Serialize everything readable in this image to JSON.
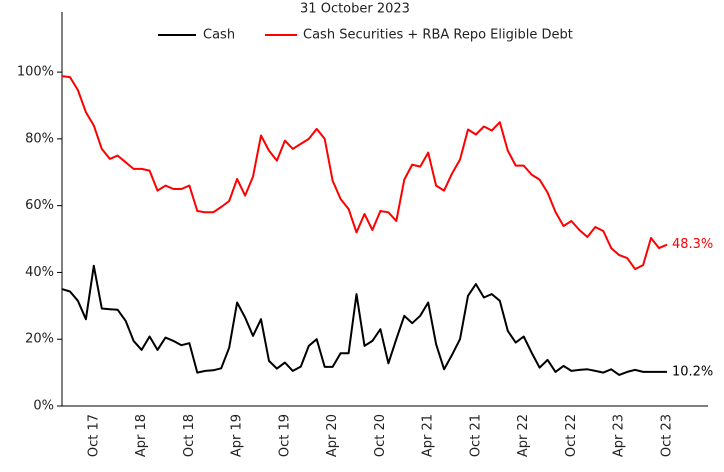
{
  "chart_data": {
    "type": "line",
    "subtitle": "31 October 2023",
    "categories": [
      null,
      null,
      null,
      null,
      "Oct 17",
      null,
      null,
      null,
      null,
      null,
      "Apr 18",
      null,
      null,
      null,
      null,
      null,
      "Oct 18",
      null,
      null,
      null,
      null,
      null,
      "Apr 19",
      null,
      null,
      null,
      null,
      null,
      "Oct 19",
      null,
      null,
      null,
      null,
      null,
      "Apr 20",
      null,
      null,
      null,
      null,
      null,
      "Oct 20",
      null,
      null,
      null,
      null,
      null,
      "Apr 21",
      null,
      null,
      null,
      null,
      null,
      "Oct 21",
      null,
      null,
      null,
      null,
      null,
      "Apr 22",
      null,
      null,
      null,
      null,
      null,
      "Oct 22",
      null,
      null,
      null,
      null,
      null,
      "Apr 23",
      null,
      null,
      null,
      null,
      null,
      "Oct 23"
    ],
    "series": [
      {
        "name": "Cash",
        "color": "#000000",
        "values": [
          35,
          34.3,
          31.5,
          26,
          42,
          29.2,
          29,
          28.8,
          25.5,
          19.5,
          16.8,
          20.8,
          16.8,
          20.5,
          19.5,
          18.2,
          18.8,
          10,
          10.5,
          10.7,
          11.3,
          17.5,
          31,
          26.5,
          21,
          26,
          13.5,
          11.2,
          13,
          10.5,
          11.8,
          18,
          20,
          11.7,
          11.7,
          15.8,
          15.8,
          33.5,
          18,
          19.5,
          23,
          12.8,
          20,
          27,
          24.8,
          27,
          31,
          18.5,
          11,
          15.3,
          20,
          33,
          36.5,
          32.5,
          33.5,
          31.5,
          22.5,
          19,
          20.8,
          16,
          11.5,
          13.8,
          10.2,
          12,
          10.5,
          10.8,
          11,
          10.5,
          10,
          11,
          9.3,
          10.2,
          10.8,
          10.2,
          10.2,
          10.2,
          10.2
        ],
        "value_labels": [
          null,
          null,
          null,
          null,
          null,
          null,
          null,
          null,
          null,
          null,
          null,
          null,
          null,
          null,
          null,
          null,
          null,
          null,
          null,
          null,
          null,
          null,
          null,
          null,
          null,
          null,
          null,
          null,
          null,
          null,
          null,
          null,
          null,
          null,
          null,
          null,
          null,
          null,
          null,
          null,
          null,
          null,
          null,
          null,
          null,
          null,
          null,
          null,
          null,
          null,
          null,
          null,
          null,
          null,
          null,
          null,
          null,
          null,
          null,
          null,
          null,
          null,
          null,
          null,
          null,
          null,
          null,
          null,
          null,
          null,
          null,
          null,
          null,
          null,
          null,
          null,
          "10.2%"
        ]
      },
      {
        "name": "Cash Securities + RBA Repo Eligible Debt",
        "color": "#ff0000",
        "values": [
          98.8,
          98.5,
          94.6,
          88,
          84,
          77,
          74,
          75,
          73,
          71,
          71,
          70.5,
          64.5,
          66,
          65,
          65,
          66,
          58.4,
          58,
          58,
          59.6,
          61.4,
          68,
          63,
          68.7,
          81,
          76.5,
          73.5,
          79.5,
          77,
          78.5,
          80,
          83,
          80,
          67.5,
          62,
          59,
          52,
          57.5,
          52.7,
          58.4,
          58,
          55.4,
          67.8,
          72.3,
          71.7,
          75.9,
          66,
          64.5,
          69.6,
          73.8,
          82.8,
          81.3,
          83.7,
          82.5,
          85,
          76.5,
          72,
          72,
          69.3,
          67.8,
          63.9,
          58.1,
          53.9,
          55.4,
          52.7,
          50.6,
          53.6,
          52.4,
          47.3,
          45.2,
          44.3,
          41,
          42.2,
          50.3,
          47.3,
          48.3
        ],
        "value_labels": [
          null,
          null,
          null,
          null,
          null,
          null,
          null,
          null,
          null,
          null,
          null,
          null,
          null,
          null,
          null,
          null,
          null,
          null,
          null,
          null,
          null,
          null,
          null,
          null,
          null,
          null,
          null,
          null,
          null,
          null,
          null,
          null,
          null,
          null,
          null,
          null,
          null,
          null,
          null,
          null,
          null,
          null,
          null,
          null,
          null,
          null,
          null,
          null,
          null,
          null,
          null,
          null,
          null,
          null,
          null,
          null,
          null,
          null,
          null,
          null,
          null,
          null,
          null,
          null,
          null,
          null,
          null,
          null,
          null,
          null,
          null,
          null,
          null,
          null,
          null,
          null,
          "48.3%"
        ]
      }
    ],
    "ylim": [
      0,
      118
    ],
    "yticks": [
      {
        "value": 0,
        "label": "0%"
      },
      {
        "value": 20,
        "label": "20%"
      },
      {
        "value": 40,
        "label": "40%"
      },
      {
        "value": 60,
        "label": "60%"
      },
      {
        "value": 80,
        "label": "80%"
      },
      {
        "value": 100,
        "label": "100%"
      }
    ],
    "legend": "top"
  }
}
